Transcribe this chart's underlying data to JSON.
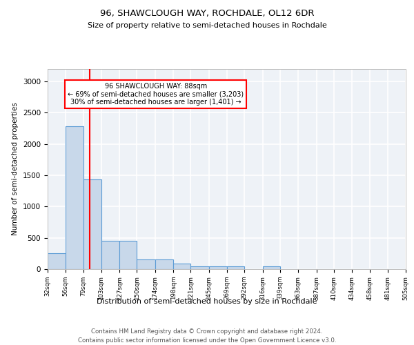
{
  "title1": "96, SHAWCLOUGH WAY, ROCHDALE, OL12 6DR",
  "title2": "Size of property relative to semi-detached houses in Rochdale",
  "xlabel": "Distribution of semi-detached houses by size in Rochdale",
  "ylabel": "Number of semi-detached properties",
  "bin_edges": [
    32,
    56,
    79,
    103,
    127,
    150,
    174,
    198,
    221,
    245,
    269,
    292,
    316,
    339,
    363,
    387,
    410,
    434,
    458,
    481,
    505
  ],
  "bar_heights": [
    250,
    2280,
    1430,
    450,
    455,
    155,
    155,
    85,
    45,
    45,
    45,
    0,
    45,
    0,
    0,
    0,
    0,
    0,
    0,
    0
  ],
  "bar_color": "#c8d8ea",
  "bar_edge_color": "#5b9bd5",
  "red_line_x": 88,
  "annotation_title": "96 SHAWCLOUGH WAY: 88sqm",
  "annotation_line1": "← 69% of semi-detached houses are smaller (3,203)",
  "annotation_line2": "30% of semi-detached houses are larger (1,401) →",
  "annotation_box_color": "white",
  "annotation_box_edge_color": "red",
  "ylim": [
    0,
    3200
  ],
  "yticks": [
    0,
    500,
    1000,
    1500,
    2000,
    2500,
    3000
  ],
  "background_color": "#eef2f7",
  "grid_color": "white",
  "footer_line1": "Contains HM Land Registry data © Crown copyright and database right 2024.",
  "footer_line2": "Contains public sector information licensed under the Open Government Licence v3.0."
}
